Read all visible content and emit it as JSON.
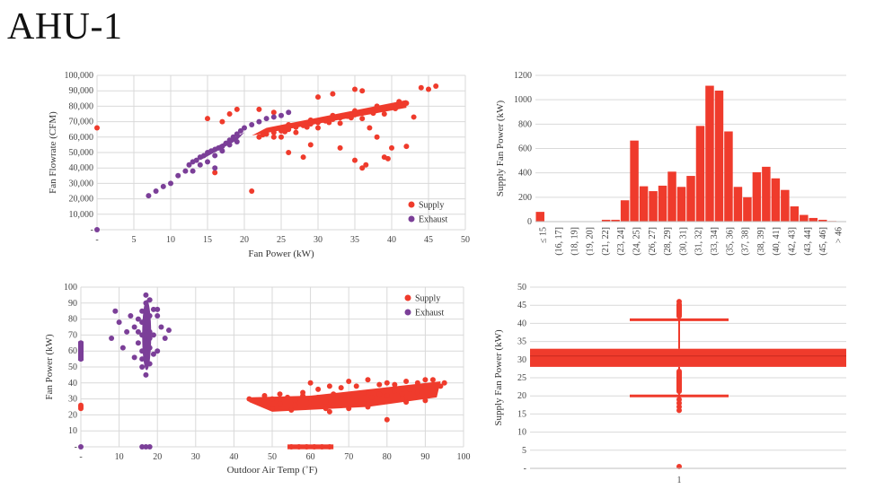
{
  "slide": {
    "title": "AHU-1"
  },
  "colors": {
    "supply": "#ef3b2c",
    "exhaust": "#7b3f98",
    "grid": "#d9d9d9",
    "axis": "#bfbfbf"
  },
  "chart_data": [
    {
      "type": "scatter",
      "xlabel": "Fan Power (kW)",
      "ylabel": "Fan Flowrate (CFM)",
      "xlim": [
        0,
        50
      ],
      "ylim": [
        0,
        100000
      ],
      "x_ticks": [
        "-",
        "5",
        "10",
        "15",
        "20",
        "25",
        "30",
        "35",
        "40",
        "45",
        "50"
      ],
      "y_ticks": [
        "-",
        "10,000",
        "20,000",
        "30,000",
        "40,000",
        "50,000",
        "60,000",
        "70,000",
        "80,000",
        "90,000",
        "100,000"
      ],
      "legend": "bottom-right",
      "series": [
        {
          "name": "Supply",
          "color": "#ef3b2c",
          "points": [
            [
              0,
              66000
            ],
            [
              21,
              25000
            ],
            [
              22,
              60000
            ],
            [
              23,
              62000
            ],
            [
              24,
              63000
            ],
            [
              25,
              64000
            ],
            [
              26,
              65000
            ],
            [
              27,
              66500
            ],
            [
              28,
              67500
            ],
            [
              29,
              68500
            ],
            [
              30,
              69500
            ],
            [
              31,
              70500
            ],
            [
              32,
              71500
            ],
            [
              33,
              72500
            ],
            [
              34,
              73500
            ],
            [
              35,
              74500
            ],
            [
              36,
              75500
            ],
            [
              37,
              76500
            ],
            [
              38,
              77500
            ],
            [
              39,
              78500
            ],
            [
              40,
              79500
            ],
            [
              41,
              80500
            ],
            [
              42,
              82000
            ],
            [
              22.5,
              61500
            ],
            [
              25.5,
              63500
            ],
            [
              28.5,
              66500
            ],
            [
              31.5,
              69500
            ],
            [
              34.5,
              72500
            ],
            [
              37.5,
              75500
            ],
            [
              40.5,
              78500
            ],
            [
              26,
              68000
            ],
            [
              29,
              71000
            ],
            [
              32,
              74000
            ],
            [
              35,
              77000
            ],
            [
              38,
              80000
            ],
            [
              41,
              83000
            ],
            [
              24,
              60000
            ],
            [
              27,
              63000
            ],
            [
              30,
              66000
            ],
            [
              33,
              69000
            ],
            [
              36,
              72000
            ],
            [
              39,
              75000
            ],
            [
              15,
              72000
            ],
            [
              17,
              70000
            ],
            [
              16,
              37000
            ],
            [
              19,
              78000
            ],
            [
              18,
              75000
            ],
            [
              25,
              60000
            ],
            [
              29,
              55000
            ],
            [
              33,
              53000
            ],
            [
              36,
              40000
            ],
            [
              36.5,
              42000
            ],
            [
              35,
              45000
            ],
            [
              37,
              66000
            ],
            [
              38,
              60000
            ],
            [
              40,
              53000
            ],
            [
              42,
              54000
            ],
            [
              39,
              47000
            ],
            [
              39.5,
              46000
            ],
            [
              43,
              73000
            ],
            [
              44,
              92000
            ],
            [
              45,
              91000
            ],
            [
              46,
              93000
            ],
            [
              35,
              91000
            ],
            [
              36,
              90000
            ],
            [
              32,
              88000
            ],
            [
              30,
              86000
            ],
            [
              22,
              78000
            ],
            [
              24,
              76000
            ],
            [
              28,
              47000
            ],
            [
              26,
              50000
            ]
          ]
        },
        {
          "name": "Exhaust",
          "color": "#7b3f98",
          "points": [
            [
              0,
              0
            ],
            [
              7,
              22000
            ],
            [
              8,
              25000
            ],
            [
              9,
              28000
            ],
            [
              10,
              30000
            ],
            [
              11,
              35000
            ],
            [
              12,
              38000
            ],
            [
              12.5,
              42000
            ],
            [
              13,
              44000
            ],
            [
              13.5,
              45000
            ],
            [
              14,
              47000
            ],
            [
              14.5,
              48000
            ],
            [
              15,
              50000
            ],
            [
              15.5,
              51000
            ],
            [
              16,
              52000
            ],
            [
              16.5,
              53000
            ],
            [
              17,
              54000
            ],
            [
              17.5,
              56000
            ],
            [
              18,
              58000
            ],
            [
              18.5,
              60000
            ],
            [
              19,
              62000
            ],
            [
              19.5,
              64000
            ],
            [
              20,
              66000
            ],
            [
              21,
              68000
            ],
            [
              22,
              70000
            ],
            [
              23,
              72000
            ],
            [
              24,
              73000
            ],
            [
              25,
              74000
            ],
            [
              26,
              76000
            ],
            [
              14,
              42000
            ],
            [
              16,
              48000
            ],
            [
              18,
              55000
            ],
            [
              13,
              38000
            ],
            [
              15,
              44000
            ],
            [
              17,
              51000
            ],
            [
              19,
              57000
            ],
            [
              16,
              40000
            ]
          ]
        }
      ]
    },
    {
      "type": "bar",
      "ylabel": "Supply Fan Power (kW)",
      "ylim": [
        0,
        1200
      ],
      "y_ticks": [
        "0",
        "200",
        "400",
        "600",
        "800",
        "1000",
        "1200"
      ],
      "categories": [
        "≤ 15",
        "(15, 16]",
        "(16, 17]",
        "(17, 18]",
        "(18, 19]",
        "(19, 20]",
        "(20, 21]",
        "(21, 22]",
        "(22, 23]",
        "(23, 24]",
        "(24, 25]",
        "(25, 26]",
        "(26, 27]",
        "(27, 28]",
        "(28, 29]",
        "(29, 30]",
        "(30, 31]",
        "(31, 32]",
        "(32, 33]",
        "(33, 34]",
        "(34, 35]",
        "(35, 36]",
        "(36, 37]",
        "(37, 38]",
        "(38, 39]",
        "(39, 40]",
        "(40, 41]",
        "(41, 42]",
        "(42, 43]",
        "(43, 44]",
        "(44, 45]",
        "(45, 46]",
        "> 46"
      ],
      "x_tick_labels": [
        "≤ 15",
        "(16, 17]",
        "(18, 19]",
        "(19, 20]",
        "(21, 22]",
        "(23, 24]",
        "(24, 25]",
        "(26, 27]",
        "(28, 29]",
        "(30, 31]",
        "(31, 32]",
        "(33, 34]",
        "(35, 36]",
        "(37, 38]",
        "(38, 39]",
        "(40, 41]",
        "(42, 43]",
        "(43, 44]",
        "(45, 46]",
        "> 46"
      ],
      "values": [
        80,
        0,
        0,
        0,
        0,
        0,
        0,
        15,
        15,
        175,
        665,
        290,
        250,
        295,
        410,
        285,
        375,
        785,
        1115,
        1075,
        740,
        285,
        200,
        405,
        450,
        355,
        260,
        125,
        55,
        30,
        15,
        5,
        0
      ]
    },
    {
      "type": "scatter",
      "xlabel": "Outdoor Air Temp (˚F)",
      "ylabel": "Fan Power (kW)",
      "xlim": [
        0,
        100
      ],
      "ylim": [
        0,
        100
      ],
      "x_ticks": [
        "-",
        "10",
        "20",
        "30",
        "40",
        "50",
        "60",
        "70",
        "80",
        "90",
        "100"
      ],
      "y_ticks": [
        "-",
        "10",
        "20",
        "30",
        "40",
        "50",
        "60",
        "70",
        "80",
        "90",
        "100"
      ],
      "legend": "top-right",
      "series": [
        {
          "name": "Supply",
          "color": "#ef3b2c",
          "points": [
            [
              0,
              25
            ],
            [
              0,
              24
            ],
            [
              0,
              26
            ],
            [
              55,
              0
            ],
            [
              57,
              0
            ],
            [
              59,
              0
            ],
            [
              61,
              0
            ],
            [
              63,
              0
            ],
            [
              65,
              0
            ],
            [
              44,
              30
            ],
            [
              46,
              29
            ],
            [
              48,
              28
            ],
            [
              50,
              30
            ],
            [
              52,
              27
            ],
            [
              54,
              31
            ],
            [
              56,
              29
            ],
            [
              58,
              32
            ],
            [
              60,
              30
            ],
            [
              62,
              31
            ],
            [
              64,
              28
            ],
            [
              66,
              33
            ],
            [
              68,
              30
            ],
            [
              70,
              32
            ],
            [
              72,
              29
            ],
            [
              74,
              34
            ],
            [
              76,
              31
            ],
            [
              78,
              33
            ],
            [
              80,
              32
            ],
            [
              82,
              35
            ],
            [
              84,
              33
            ],
            [
              86,
              36
            ],
            [
              88,
              34
            ],
            [
              90,
              37
            ],
            [
              92,
              35
            ],
            [
              94,
              38
            ],
            [
              95,
              40
            ],
            [
              50,
              24
            ],
            [
              55,
              23
            ],
            [
              60,
              25
            ],
            [
              65,
              22
            ],
            [
              70,
              24
            ],
            [
              75,
              25
            ],
            [
              80,
              17
            ],
            [
              85,
              28
            ],
            [
              90,
              29
            ],
            [
              60,
              40
            ],
            [
              65,
              38
            ],
            [
              70,
              41
            ],
            [
              75,
              42
            ],
            [
              80,
              40
            ],
            [
              85,
              41
            ],
            [
              90,
              42
            ],
            [
              62,
              36
            ],
            [
              68,
              37
            ],
            [
              72,
              38
            ],
            [
              78,
              39
            ],
            [
              82,
              39
            ],
            [
              88,
              40
            ],
            [
              92,
              42
            ],
            [
              58,
              34
            ],
            [
              52,
              33
            ],
            [
              48,
              32
            ],
            [
              66,
              26
            ],
            [
              74,
              27
            ],
            [
              84,
              30
            ],
            [
              64,
              24
            ],
            [
              56,
              26
            ]
          ]
        },
        {
          "name": "Exhaust",
          "color": "#7b3f98",
          "points": [
            [
              0,
              0
            ],
            [
              0,
              55
            ],
            [
              0,
              60
            ],
            [
              0,
              65
            ],
            [
              0,
              58
            ],
            [
              16,
              0
            ],
            [
              17,
              0
            ],
            [
              18,
              0
            ],
            [
              8,
              68
            ],
            [
              9,
              85
            ],
            [
              10,
              78
            ],
            [
              11,
              62
            ],
            [
              12,
              72
            ],
            [
              13,
              82
            ],
            [
              14,
              56
            ],
            [
              14,
              75
            ],
            [
              15,
              65
            ],
            [
              15,
              80
            ],
            [
              16,
              50
            ],
            [
              16,
              60
            ],
            [
              16,
              70
            ],
            [
              16,
              85
            ],
            [
              17,
              45
            ],
            [
              17,
              55
            ],
            [
              17,
              65
            ],
            [
              17,
              75
            ],
            [
              17,
              90
            ],
            [
              17,
              95
            ],
            [
              18,
              52
            ],
            [
              18,
              62
            ],
            [
              18,
              72
            ],
            [
              18,
              82
            ],
            [
              18,
              92
            ],
            [
              19,
              58
            ],
            [
              19,
              70
            ],
            [
              20,
              60
            ],
            [
              20,
              82
            ],
            [
              21,
              75
            ],
            [
              22,
              68
            ],
            [
              23,
              73
            ],
            [
              16,
              78
            ],
            [
              17,
              85
            ],
            [
              18,
              68
            ],
            [
              16,
              55
            ],
            [
              15,
              72
            ],
            [
              19,
              86
            ],
            [
              20,
              86
            ]
          ]
        }
      ]
    },
    {
      "type": "box",
      "ylabel": "Supply Fan Power (kW)",
      "ylim": [
        0,
        50
      ],
      "y_ticks": [
        "-",
        "5",
        "10",
        "15",
        "20",
        "25",
        "30",
        "35",
        "40",
        "45",
        "50"
      ],
      "categories": [
        "1"
      ],
      "q1": 28,
      "q3": 33,
      "median": 31,
      "whisker_low": 20,
      "whisker_high": 41,
      "outliers": [
        46,
        45,
        44,
        43,
        42,
        19,
        18,
        17,
        16,
        0.5
      ]
    }
  ]
}
